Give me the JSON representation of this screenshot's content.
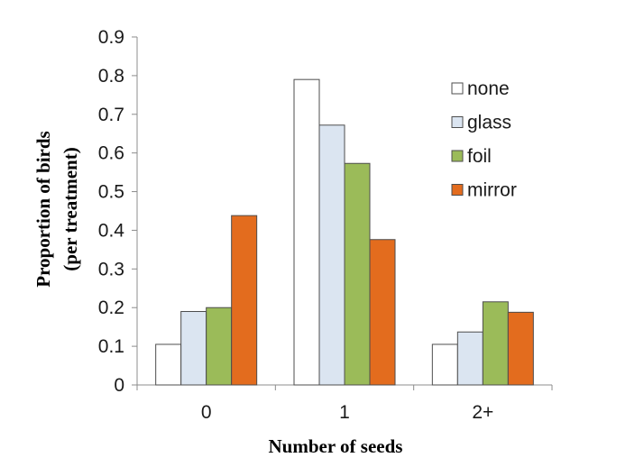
{
  "chart_data": {
    "type": "bar",
    "categories": [
      "0",
      "1",
      "2+"
    ],
    "series": [
      {
        "name": "none",
        "values": [
          0.105,
          0.79,
          0.105
        ],
        "color": "#ffffff"
      },
      {
        "name": "glass",
        "values": [
          0.19,
          0.672,
          0.137
        ],
        "color": "#dbe5f1"
      },
      {
        "name": "foil",
        "values": [
          0.2,
          0.573,
          0.215
        ],
        "color": "#9bbb59"
      },
      {
        "name": "mirror",
        "values": [
          0.438,
          0.376,
          0.188
        ],
        "color": "#e36c1e"
      }
    ],
    "xlabel": "Number of seeds",
    "ylabel_lines": [
      "Proportion of birds",
      "(per treatment)"
    ],
    "ylim": [
      0,
      0.9
    ],
    "yticks": [
      "0",
      "0.1",
      "0.2",
      "0.3",
      "0.4",
      "0.5",
      "0.6",
      "0.7",
      "0.8",
      "0.9"
    ],
    "legend_position": "top-right",
    "grid": false
  }
}
